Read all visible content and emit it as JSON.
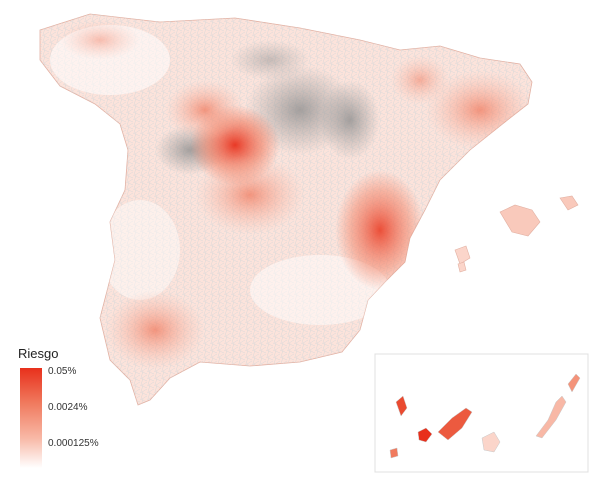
{
  "legend": {
    "title": "Riesgo",
    "labels": [
      "0.05%",
      "0.0024%",
      "0.000125%"
    ]
  },
  "colors": {
    "high": "#e8301c",
    "medium": "#f4937a",
    "low": "#fbd5ca",
    "none": "#ffffff",
    "missing": "#9a9a9a",
    "border": "#c8c8c8"
  }
}
